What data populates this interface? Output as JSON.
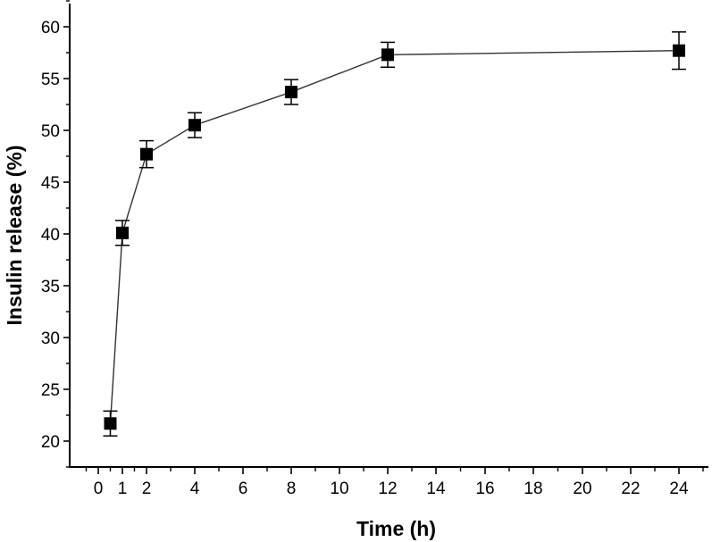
{
  "chart_data": {
    "type": "line",
    "xlabel": "Time (h)",
    "ylabel": "Insulin release (%)",
    "x_axis": {
      "range": [
        -0.5,
        25
      ],
      "tick_labels": [
        "0",
        "1",
        "2",
        "4",
        "6",
        "8",
        "10",
        "12",
        "14",
        "16",
        "18",
        "20",
        "22",
        "24"
      ]
    },
    "y_axis": {
      "range": [
        17,
        63
      ],
      "ticks": [
        20,
        25,
        30,
        35,
        40,
        45,
        50,
        55,
        60
      ]
    },
    "grid": false,
    "legend": "none",
    "marker": "square",
    "series": [
      {
        "points": [
          {
            "x": 0.5,
            "y": 21.7,
            "err": 1.2
          },
          {
            "x": 1,
            "y": 40.1,
            "err": 1.2
          },
          {
            "x": 2,
            "y": 47.7,
            "err": 1.3
          },
          {
            "x": 4,
            "y": 50.5,
            "err": 1.2
          },
          {
            "x": 8,
            "y": 53.7,
            "err": 1.2
          },
          {
            "x": 12,
            "y": 57.3,
            "err": 1.2
          },
          {
            "x": 24,
            "y": 57.7,
            "err": 1.8
          }
        ]
      }
    ]
  }
}
